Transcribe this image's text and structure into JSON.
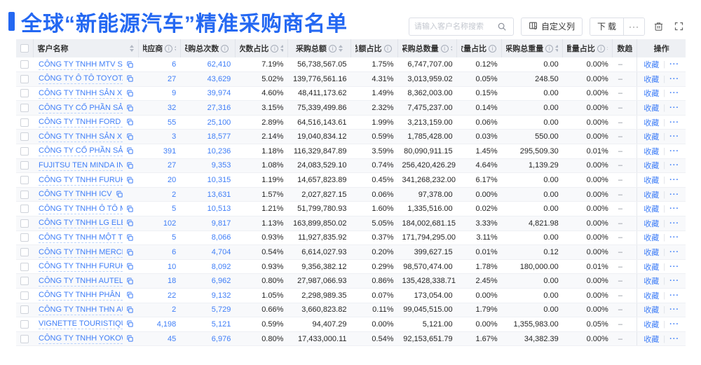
{
  "colors": {
    "accent": "#2468f2",
    "link": "#3f7ef7"
  },
  "header": {
    "title": "全球“新能源汽车”精准采购商名单"
  },
  "toolbar": {
    "search_placeholder": "请输入客户名称搜索",
    "customize_columns_label": "自定义列",
    "download_label": "下载",
    "more_label": "···"
  },
  "table": {
    "columns": [
      {
        "key": "name",
        "label": "客户名称",
        "info": false,
        "sort": true,
        "align": "left"
      },
      {
        "key": "supplier",
        "label": "供应商",
        "info": true,
        "sort": true,
        "align": "right",
        "blue": true
      },
      {
        "key": "total_times",
        "label": "采购总次数",
        "info": true,
        "sort": true,
        "align": "right",
        "blue": true
      },
      {
        "key": "times_pct",
        "label": "次数占比",
        "info": true,
        "sort": true,
        "align": "right"
      },
      {
        "key": "total_amount",
        "label": "采购总额",
        "info": true,
        "sort": true,
        "align": "right"
      },
      {
        "key": "amount_pct",
        "label": "总额占比",
        "info": true,
        "sort": true,
        "align": "right"
      },
      {
        "key": "total_qty",
        "label": "采购总数量",
        "info": true,
        "sort": true,
        "align": "right"
      },
      {
        "key": "qty_pct",
        "label": "数量占比",
        "info": true,
        "sort": true,
        "align": "right"
      },
      {
        "key": "total_weight",
        "label": "采购总重量",
        "info": true,
        "sort": true,
        "align": "right"
      },
      {
        "key": "weight_pct",
        "label": "重量占比",
        "info": true,
        "sort": true,
        "align": "right"
      },
      {
        "key": "trend",
        "label": "次数趋势",
        "info": false,
        "sort": false,
        "align": "left"
      },
      {
        "key": "ops",
        "label": "操作",
        "info": false,
        "sort": false,
        "align": "center"
      }
    ],
    "actions": {
      "favorite": "收藏",
      "divider": "|",
      "more": "···"
    },
    "rows": [
      {
        "name": "CÔNG TY TNHH MTV SẢN XUẤ...",
        "supplier": "6",
        "total_times": "62,410",
        "times_pct": "7.19%",
        "total_amount": "56,738,567.05",
        "amount_pct": "1.75%",
        "total_qty": "6,747,707.00",
        "qty_pct": "0.12%",
        "total_weight": "0.00",
        "weight_pct": "0.00%",
        "trend": "–"
      },
      {
        "name": "CÔNG TY Ô TÔ TOYOTA VIỆT ...",
        "supplier": "27",
        "total_times": "43,629",
        "times_pct": "5.02%",
        "total_amount": "139,776,561.16",
        "amount_pct": "4.31%",
        "total_qty": "3,013,959.02",
        "qty_pct": "0.05%",
        "total_weight": "248.50",
        "weight_pct": "0.00%",
        "trend": "–"
      },
      {
        "name": "CÔNG TY TNHH SẢN XUẤT VÀ ...",
        "supplier": "9",
        "total_times": "39,974",
        "times_pct": "4.60%",
        "total_amount": "48,411,173.62",
        "amount_pct": "1.49%",
        "total_qty": "8,362,003.00",
        "qty_pct": "0.15%",
        "total_weight": "0.00",
        "weight_pct": "0.00%",
        "trend": "–"
      },
      {
        "name": "CÔNG TY CỔ PHẦN SẢN XUẤT...",
        "supplier": "32",
        "total_times": "27,316",
        "times_pct": "3.15%",
        "total_amount": "75,339,499.86",
        "amount_pct": "2.32%",
        "total_qty": "7,475,237.00",
        "qty_pct": "0.14%",
        "total_weight": "0.00",
        "weight_pct": "0.00%",
        "trend": "–"
      },
      {
        "name": "CÔNG TY TNHH FORD VIỆT NAM",
        "supplier": "55",
        "total_times": "25,100",
        "times_pct": "2.89%",
        "total_amount": "64,516,143.61",
        "amount_pct": "1.99%",
        "total_qty": "3,213,159.00",
        "qty_pct": "0.06%",
        "total_weight": "0.00",
        "weight_pct": "0.00%",
        "trend": "–"
      },
      {
        "name": "CÔNG TY TNHH SẢN XUẤT VÀ ...",
        "supplier": "3",
        "total_times": "18,577",
        "times_pct": "2.14%",
        "total_amount": "19,040,834.12",
        "amount_pct": "0.59%",
        "total_qty": "1,785,428.00",
        "qty_pct": "0.03%",
        "total_weight": "550.00",
        "weight_pct": "0.00%",
        "trend": "–"
      },
      {
        "name": "CÔNG TY CỔ PHẦN SẢN XUẤT...",
        "supplier": "391",
        "total_times": "10,236",
        "times_pct": "1.18%",
        "total_amount": "116,329,847.89",
        "amount_pct": "3.59%",
        "total_qty": "80,090,911.15",
        "qty_pct": "1.45%",
        "total_weight": "295,509.30",
        "weight_pct": "0.01%",
        "trend": "–"
      },
      {
        "name": "FUJITSU TEN MINDA INDIA PVT...",
        "supplier": "27",
        "total_times": "9,353",
        "times_pct": "1.08%",
        "total_amount": "24,083,529.10",
        "amount_pct": "0.74%",
        "total_qty": "256,420,426.29",
        "qty_pct": "4.64%",
        "total_weight": "1,139.29",
        "weight_pct": "0.00%",
        "trend": "–"
      },
      {
        "name": "CÔNG TY TNHH FURUKAWA A...",
        "supplier": "20",
        "total_times": "10,315",
        "times_pct": "1.19%",
        "total_amount": "14,657,823.89",
        "amount_pct": "0.45%",
        "total_qty": "341,268,232.00",
        "qty_pct": "6.17%",
        "total_weight": "0.00",
        "weight_pct": "0.00%",
        "trend": "–"
      },
      {
        "name": "CÔNG TY TNHH ICV",
        "supplier": "2",
        "total_times": "13,631",
        "times_pct": "1.57%",
        "total_amount": "2,027,827.15",
        "amount_pct": "0.06%",
        "total_qty": "97,378.00",
        "qty_pct": "0.00%",
        "total_weight": "0.00",
        "weight_pct": "0.00%",
        "trend": "–"
      },
      {
        "name": "CÔNG TY TNHH Ô TÔ MITSUBI...",
        "supplier": "5",
        "total_times": "10,513",
        "times_pct": "1.21%",
        "total_amount": "51,799,780.93",
        "amount_pct": "1.60%",
        "total_qty": "1,335,516.00",
        "qty_pct": "0.02%",
        "total_weight": "0.00",
        "weight_pct": "0.00%",
        "trend": "–"
      },
      {
        "name": "CÔNG TY TNHH LG ELECTRON...",
        "supplier": "102",
        "total_times": "9,817",
        "times_pct": "1.13%",
        "total_amount": "163,899,850.02",
        "amount_pct": "5.05%",
        "total_qty": "184,002,681.15",
        "qty_pct": "3.33%",
        "total_weight": "4,821.98",
        "weight_pct": "0.00%",
        "trend": "–"
      },
      {
        "name": "CÔNG TY TNHH MỘT THÀNH V...",
        "supplier": "5",
        "total_times": "8,066",
        "times_pct": "0.93%",
        "total_amount": "11,927,835.92",
        "amount_pct": "0.37%",
        "total_qty": "171,794,295.00",
        "qty_pct": "3.11%",
        "total_weight": "0.00",
        "weight_pct": "0.00%",
        "trend": "–"
      },
      {
        "name": "CÔNG TY TNHH MERCEDES–B...",
        "supplier": "6",
        "total_times": "4,704",
        "times_pct": "0.54%",
        "total_amount": "6,614,027.93",
        "amount_pct": "0.20%",
        "total_qty": "399,627.15",
        "qty_pct": "0.01%",
        "total_weight": "0.12",
        "weight_pct": "0.00%",
        "trend": "–"
      },
      {
        "name": "CÔNG TY TNHH FURUKAWA A...",
        "supplier": "10",
        "total_times": "8,092",
        "times_pct": "0.93%",
        "total_amount": "9,356,382.12",
        "amount_pct": "0.29%",
        "total_qty": "98,570,474.00",
        "qty_pct": "1.78%",
        "total_weight": "180,000.00",
        "weight_pct": "0.01%",
        "trend": "–"
      },
      {
        "name": "CÔNG TY TNHH AUTEL VIỆT N...",
        "supplier": "18",
        "total_times": "6,962",
        "times_pct": "0.80%",
        "total_amount": "27,987,066.93",
        "amount_pct": "0.86%",
        "total_qty": "135,428,338.71",
        "qty_pct": "2.45%",
        "total_weight": "0.00",
        "weight_pct": "0.00%",
        "trend": "–"
      },
      {
        "name": "CÔNG TY TNHH PHÂN PHỐI T...",
        "supplier": "22",
        "total_times": "9,132",
        "times_pct": "1.05%",
        "total_amount": "2,298,989.35",
        "amount_pct": "0.07%",
        "total_qty": "173,054.00",
        "qty_pct": "0.00%",
        "total_weight": "0.00",
        "weight_pct": "0.00%",
        "trend": "–"
      },
      {
        "name": "CÔNG TY TNHH THN AUTOPAR...",
        "supplier": "2",
        "total_times": "5,729",
        "times_pct": "0.66%",
        "total_amount": "3,660,823.82",
        "amount_pct": "0.11%",
        "total_qty": "99,045,515.00",
        "qty_pct": "1.79%",
        "total_weight": "0.00",
        "weight_pct": "0.00%",
        "trend": "–"
      },
      {
        "name": "VIGNETTE TOURISTIQUE G UNI...",
        "supplier": "4,198",
        "total_times": "5,121",
        "times_pct": "0.59%",
        "total_amount": "94,407.29",
        "amount_pct": "0.00%",
        "total_qty": "5,121.00",
        "qty_pct": "0.00%",
        "total_weight": "1,355,983.00",
        "weight_pct": "0.05%",
        "trend": "–"
      },
      {
        "name": "CÔNG TY TNHH YOKOWO VIỆT...",
        "supplier": "45",
        "total_times": "6,976",
        "times_pct": "0.80%",
        "total_amount": "17,433,000.11",
        "amount_pct": "0.54%",
        "total_qty": "92,153,651.79",
        "qty_pct": "1.67%",
        "total_weight": "34,382.39",
        "weight_pct": "0.00%",
        "trend": "–"
      }
    ]
  }
}
